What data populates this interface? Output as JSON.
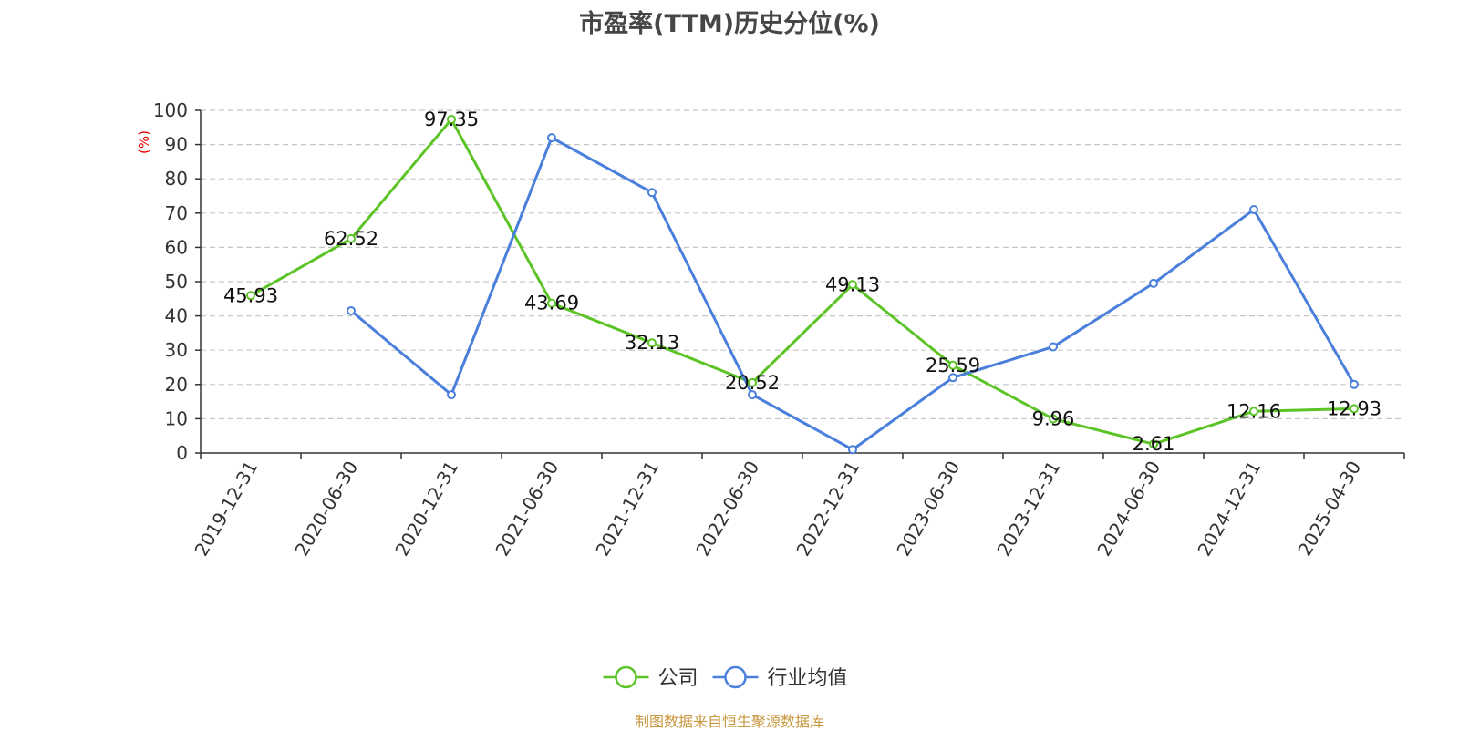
{
  "chart_data": {
    "type": "line",
    "title": "市盈率(TTM)历史分位(%)",
    "ylabel": "(%)",
    "xlabel": "",
    "ylim": [
      0,
      100
    ],
    "yticks": [
      0,
      10,
      20,
      30,
      40,
      50,
      60,
      70,
      80,
      90,
      100
    ],
    "categories": [
      "2019-12-31",
      "2020-06-30",
      "2020-12-31",
      "2021-06-30",
      "2021-12-31",
      "2022-06-30",
      "2022-12-31",
      "2023-06-30",
      "2023-12-31",
      "2024-06-30",
      "2024-12-31",
      "2025-04-30"
    ],
    "series": [
      {
        "name": "公司",
        "color": "#5cc427",
        "values": [
          45.93,
          62.52,
          97.35,
          43.69,
          32.13,
          20.52,
          49.13,
          25.59,
          9.96,
          2.61,
          12.16,
          12.93
        ],
        "labels": [
          "45.93",
          "62.52",
          "97.35",
          "43.69",
          "32.13",
          "20.52",
          "49.13",
          "25.59",
          "9.96",
          "2.61",
          "12.16",
          "12.93"
        ]
      },
      {
        "name": "行业均值",
        "color": "#4a7fdc",
        "values": [
          null,
          41.5,
          17,
          92,
          76,
          17,
          1,
          22,
          31,
          49.5,
          71,
          20
        ]
      }
    ],
    "grid": true,
    "legend_position": "bottom-center"
  },
  "source": "制图数据来自恒生聚源数据库"
}
